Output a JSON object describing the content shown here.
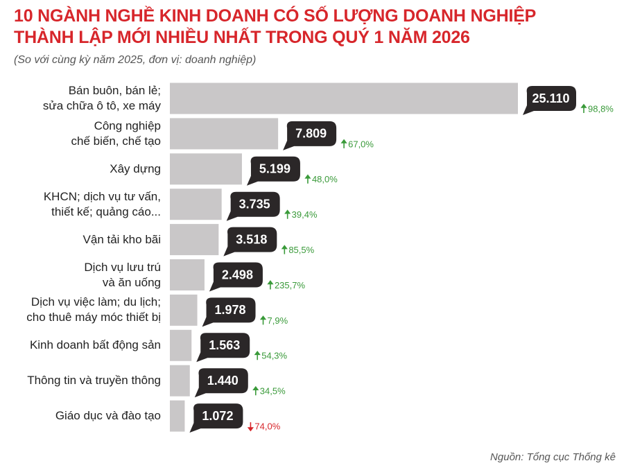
{
  "chart_data": {
    "type": "bar",
    "title": "10 NGÀNH NGHỀ KINH DOANH CÓ SỐ LƯỢNG DOANH NGHIỆP\nTHÀNH LẬP MỚI NHIỀU NHẤT TRONG QUÝ 1 NĂM 2026",
    "subtitle": "(So với cùng kỳ năm 2025, đơn vị: doanh nghiệp)",
    "categories": [
      "Bán buôn, bán lẻ;\nsửa chữa ô tô, xe máy",
      "Công nghiệp\nchế biến, chế tạo",
      "Xây dựng",
      "KHCN; dịch vụ tư vấn,\nthiết kế; quảng cáo...",
      "Vận tải kho bãi",
      "Dịch vụ lưu trú\nvà ăn uống",
      "Dịch vụ việc làm; du lịch;\ncho thuê máy móc thiết bị",
      "Kinh doanh bất động sản",
      "Thông tin và truyền thông",
      "Giáo dục và đào tạo"
    ],
    "values": [
      25110,
      7809,
      5199,
      3735,
      3518,
      2498,
      1978,
      1563,
      1440,
      1072
    ],
    "value_labels": [
      "25.110",
      "7.809",
      "5.199",
      "3.735",
      "3.518",
      "2.498",
      "1.978",
      "1.563",
      "1.440",
      "1.072"
    ],
    "color": "#c9c7c8",
    "changes": [
      98.8,
      67.0,
      48.0,
      39.4,
      85.5,
      235.7,
      7.9,
      54.3,
      34.5,
      74.0
    ],
    "change_labels": [
      "98,8%",
      "67,0%",
      "48,0%",
      "39,4%",
      "85,5%",
      "235,7%",
      "7,9%",
      "54,3%",
      "34,5%",
      "74,0%"
    ],
    "change_directions": [
      "up",
      "up",
      "up",
      "up",
      "up",
      "up",
      "up",
      "up",
      "up",
      "down"
    ],
    "up_color": "#3a9a3a",
    "down_color": "#d7262b",
    "source": "Nguồn: Tổng cục Thống kê"
  }
}
